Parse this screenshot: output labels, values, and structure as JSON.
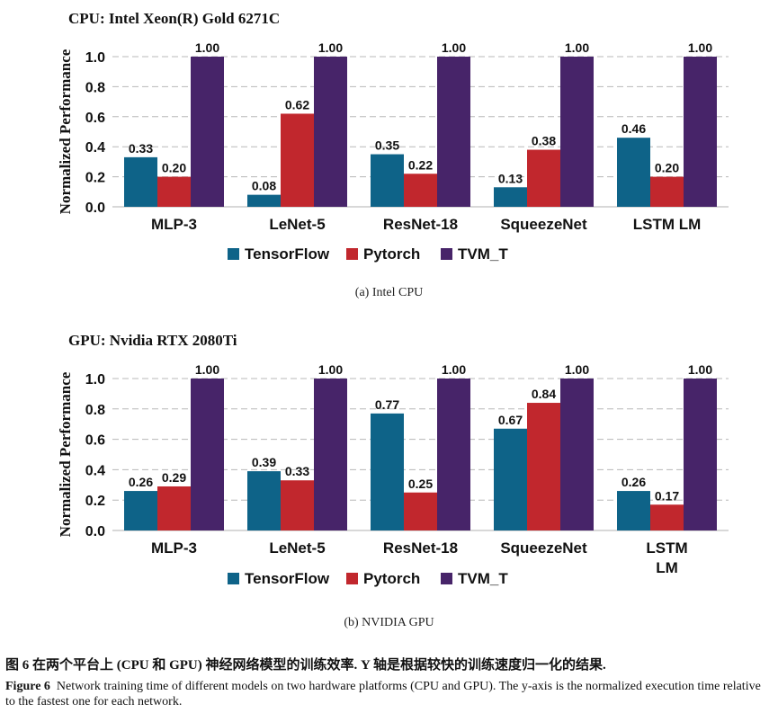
{
  "chart_data": [
    {
      "type": "bar",
      "title": "CPU: Intel Xeon(R) Gold 6271C",
      "xlabel": "",
      "ylabel": "Normalized Performance",
      "ylim": [
        0,
        1.0
      ],
      "yticks": [
        "0.0",
        "0.2",
        "0.4",
        "0.6",
        "0.8",
        "1.0"
      ],
      "grid": true,
      "legend_position": "bottom-center",
      "categories": [
        [
          "MLP-3"
        ],
        [
          "LeNet-5"
        ],
        [
          "ResNet-18"
        ],
        [
          "SqueezeNet"
        ],
        [
          "LSTM LM"
        ]
      ],
      "series": [
        {
          "name": "TensorFlow",
          "color": "#0e6388",
          "values": [
            0.33,
            0.08,
            0.35,
            0.13,
            0.46
          ],
          "labels": [
            "0.33",
            "0.08",
            "0.35",
            "0.13",
            "0.46"
          ]
        },
        {
          "name": "Pytorch",
          "color": "#c1272d",
          "values": [
            0.2,
            0.62,
            0.22,
            0.38,
            0.2
          ],
          "labels": [
            "0.20",
            "0.62",
            "0.22",
            "0.38",
            "0.20"
          ]
        },
        {
          "name": "TVM_T",
          "color": "#472469",
          "values": [
            1.0,
            1.0,
            1.0,
            1.0,
            1.0
          ],
          "labels": [
            "1.00",
            "1.00",
            "1.00",
            "1.00",
            "1.00"
          ]
        }
      ],
      "subcaption": "(a) Intel CPU"
    },
    {
      "type": "bar",
      "title": "GPU: Nvidia RTX 2080Ti",
      "xlabel": "",
      "ylabel": "Normalized Performance",
      "ylim": [
        0,
        1.0
      ],
      "yticks": [
        "0.0",
        "0.2",
        "0.4",
        "0.6",
        "0.8",
        "1.0"
      ],
      "grid": true,
      "legend_position": "bottom-center",
      "categories": [
        [
          "MLP-3"
        ],
        [
          "LeNet-5"
        ],
        [
          "ResNet-18"
        ],
        [
          "SqueezeNet"
        ],
        [
          "LSTM",
          "LM"
        ]
      ],
      "series": [
        {
          "name": "TensorFlow",
          "color": "#0e6388",
          "values": [
            0.26,
            0.39,
            0.77,
            0.67,
            0.26
          ],
          "labels": [
            "0.26",
            "0.39",
            "0.77",
            "0.67",
            "0.26"
          ]
        },
        {
          "name": "Pytorch",
          "color": "#c1272d",
          "values": [
            0.29,
            0.33,
            0.25,
            0.84,
            0.17
          ],
          "labels": [
            "0.29",
            "0.33",
            "0.25",
            "0.84",
            "0.17"
          ]
        },
        {
          "name": "TVM_T",
          "color": "#472469",
          "values": [
            1.0,
            1.0,
            1.0,
            1.0,
            1.0
          ],
          "labels": [
            "1.00",
            "1.00",
            "1.00",
            "1.00",
            "1.00"
          ]
        }
      ],
      "subcaption": "(b) NVIDIA GPU"
    }
  ],
  "caption": {
    "zh": "图 6   在两个平台上 (CPU 和 GPU) 神经网络模型的训练效率. Y 轴是根据较快的训练速度归一化的结果.",
    "en_label": "Figure 6",
    "en_text": "Network training time of different models on two hardware platforms (CPU and GPU). The y-axis is the normalized execution time relative to the fastest one for each network."
  }
}
